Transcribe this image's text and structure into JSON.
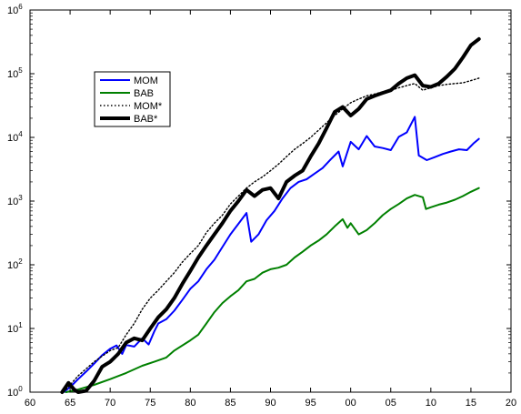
{
  "chart_data": {
    "type": "line",
    "title": "",
    "xlabel": "",
    "ylabel": "",
    "x_scale": "linear",
    "y_scale": "log",
    "xlim": [
      1960,
      2020
    ],
    "ylim": [
      1,
      1000000
    ],
    "x_ticks": [
      {
        "value": 1960,
        "label": "60"
      },
      {
        "value": 1965,
        "label": "65"
      },
      {
        "value": 1970,
        "label": "70"
      },
      {
        "value": 1975,
        "label": "75"
      },
      {
        "value": 1980,
        "label": "80"
      },
      {
        "value": 1985,
        "label": "85"
      },
      {
        "value": 1990,
        "label": "90"
      },
      {
        "value": 1995,
        "label": "95"
      },
      {
        "value": 2000,
        "label": "00"
      },
      {
        "value": 2005,
        "label": "05"
      },
      {
        "value": 2010,
        "label": "10"
      },
      {
        "value": 2015,
        "label": "15"
      },
      {
        "value": 2020,
        "label": "20"
      }
    ],
    "y_ticks": [
      {
        "value": 1,
        "base": "10",
        "exp": "0"
      },
      {
        "value": 10,
        "base": "10",
        "exp": "1"
      },
      {
        "value": 100,
        "base": "10",
        "exp": "2"
      },
      {
        "value": 1000,
        "base": "10",
        "exp": "3"
      },
      {
        "value": 10000,
        "base": "10",
        "exp": "4"
      },
      {
        "value": 100000,
        "base": "10",
        "exp": "5"
      },
      {
        "value": 1000000,
        "base": "10",
        "exp": "6"
      }
    ],
    "grid": false,
    "legend": {
      "position": "top-left"
    },
    "series": [
      {
        "name": "MOM",
        "color": "#0000ff",
        "style": "solid",
        "width": 2,
        "points": [
          [
            1964.2,
            1
          ],
          [
            1965,
            1.2
          ],
          [
            1966,
            1.6
          ],
          [
            1967,
            2.1
          ],
          [
            1968,
            2.8
          ],
          [
            1969,
            3.8
          ],
          [
            1970,
            4.8
          ],
          [
            1970.8,
            5.4
          ],
          [
            1971.5,
            4.0
          ],
          [
            1972,
            5.5
          ],
          [
            1973,
            5.2
          ],
          [
            1974,
            7
          ],
          [
            1974.8,
            5.6
          ],
          [
            1975.5,
            9
          ],
          [
            1976,
            12
          ],
          [
            1977,
            14
          ],
          [
            1978,
            19
          ],
          [
            1979,
            28
          ],
          [
            1980,
            42
          ],
          [
            1981,
            55
          ],
          [
            1982,
            85
          ],
          [
            1983,
            120
          ],
          [
            1984,
            190
          ],
          [
            1985,
            300
          ],
          [
            1986,
            440
          ],
          [
            1987,
            650
          ],
          [
            1987.6,
            230
          ],
          [
            1988.5,
            300
          ],
          [
            1989.5,
            500
          ],
          [
            1990.5,
            700
          ],
          [
            1991.5,
            1100
          ],
          [
            1992.5,
            1600
          ],
          [
            1993.5,
            2000
          ],
          [
            1994.5,
            2200
          ],
          [
            1995.5,
            2700
          ],
          [
            1996.5,
            3300
          ],
          [
            1997.5,
            4500
          ],
          [
            1998.5,
            6000
          ],
          [
            1999,
            3500
          ],
          [
            2000,
            8500
          ],
          [
            2001,
            6500
          ],
          [
            2002,
            10500
          ],
          [
            2003,
            7200
          ],
          [
            2004,
            6800
          ],
          [
            2005,
            6300
          ],
          [
            2006,
            10200
          ],
          [
            2007,
            12000
          ],
          [
            2008,
            21000
          ],
          [
            2008.5,
            5200
          ],
          [
            2009.5,
            4400
          ],
          [
            2010.5,
            4900
          ],
          [
            2011.5,
            5500
          ],
          [
            2012.5,
            6000
          ],
          [
            2013.5,
            6500
          ],
          [
            2014.5,
            6300
          ],
          [
            2015.3,
            8000
          ],
          [
            2016,
            9500
          ]
        ]
      },
      {
        "name": "BAB",
        "color": "#008000",
        "style": "solid",
        "width": 2,
        "points": [
          [
            1964.5,
            1
          ],
          [
            1966,
            1.1
          ],
          [
            1968,
            1.3
          ],
          [
            1970,
            1.6
          ],
          [
            1972,
            2.0
          ],
          [
            1974,
            2.6
          ],
          [
            1975.5,
            3.0
          ],
          [
            1977,
            3.5
          ],
          [
            1978,
            4.5
          ],
          [
            1980,
            6.5
          ],
          [
            1981,
            8
          ],
          [
            1982,
            12
          ],
          [
            1983,
            18
          ],
          [
            1984,
            25
          ],
          [
            1985,
            32
          ],
          [
            1986,
            40
          ],
          [
            1987,
            55
          ],
          [
            1988,
            60
          ],
          [
            1989,
            75
          ],
          [
            1990,
            85
          ],
          [
            1991,
            90
          ],
          [
            1992,
            100
          ],
          [
            1993,
            130
          ],
          [
            1994,
            160
          ],
          [
            1995,
            200
          ],
          [
            1996,
            240
          ],
          [
            1997,
            300
          ],
          [
            1998,
            400
          ],
          [
            1999,
            520
          ],
          [
            1999.6,
            380
          ],
          [
            2000,
            450
          ],
          [
            2001,
            300
          ],
          [
            2002,
            350
          ],
          [
            2003,
            450
          ],
          [
            2004,
            600
          ],
          [
            2005,
            750
          ],
          [
            2006,
            900
          ],
          [
            2007,
            1100
          ],
          [
            2008,
            1250
          ],
          [
            2009,
            1150
          ],
          [
            2009.4,
            750
          ],
          [
            2010,
            800
          ],
          [
            2011,
            880
          ],
          [
            2012,
            950
          ],
          [
            2013,
            1050
          ],
          [
            2014,
            1200
          ],
          [
            2015,
            1400
          ],
          [
            2016,
            1600
          ]
        ]
      },
      {
        "name": "MOM*",
        "color": "#000000",
        "style": "dotted",
        "width": 1.4,
        "points": [
          [
            1964.2,
            1
          ],
          [
            1966,
            1.8
          ],
          [
            1968,
            3
          ],
          [
            1970,
            4.5
          ],
          [
            1971,
            5
          ],
          [
            1972,
            8
          ],
          [
            1973,
            12
          ],
          [
            1974,
            20
          ],
          [
            1975,
            30
          ],
          [
            1976,
            40
          ],
          [
            1977,
            55
          ],
          [
            1978,
            75
          ],
          [
            1979,
            110
          ],
          [
            1980,
            150
          ],
          [
            1981,
            200
          ],
          [
            1982,
            320
          ],
          [
            1983,
            450
          ],
          [
            1984,
            600
          ],
          [
            1985,
            900
          ],
          [
            1986,
            1200
          ],
          [
            1987,
            1600
          ],
          [
            1988,
            2000
          ],
          [
            1989,
            2400
          ],
          [
            1990,
            3000
          ],
          [
            1991,
            3800
          ],
          [
            1992,
            5000
          ],
          [
            1993,
            6500
          ],
          [
            1994,
            8000
          ],
          [
            1995,
            10000
          ],
          [
            1996,
            13000
          ],
          [
            1997,
            17000
          ],
          [
            1998,
            22000
          ],
          [
            1999,
            28000
          ],
          [
            2000,
            35000
          ],
          [
            2001,
            40000
          ],
          [
            2002,
            45000
          ],
          [
            2003,
            48000
          ],
          [
            2004,
            52000
          ],
          [
            2005,
            55000
          ],
          [
            2006,
            60000
          ],
          [
            2007,
            65000
          ],
          [
            2008,
            70000
          ],
          [
            2009,
            55000
          ],
          [
            2010,
            60000
          ],
          [
            2011,
            65000
          ],
          [
            2012,
            68000
          ],
          [
            2013,
            70000
          ],
          [
            2014,
            72000
          ],
          [
            2015,
            78000
          ],
          [
            2016,
            85000
          ]
        ]
      },
      {
        "name": "BAB*",
        "color": "#000000",
        "style": "solid",
        "width": 4,
        "points": [
          [
            1964,
            1
          ],
          [
            1964.8,
            1.4
          ],
          [
            1965.5,
            1.1
          ],
          [
            1966,
            1.0
          ],
          [
            1967,
            1.05
          ],
          [
            1968,
            1.5
          ],
          [
            1969,
            2.5
          ],
          [
            1970,
            3
          ],
          [
            1971,
            4
          ],
          [
            1972,
            6
          ],
          [
            1973,
            7
          ],
          [
            1974,
            6.5
          ],
          [
            1975,
            10
          ],
          [
            1976,
            15
          ],
          [
            1977,
            20
          ],
          [
            1978,
            30
          ],
          [
            1979,
            50
          ],
          [
            1980,
            80
          ],
          [
            1981,
            130
          ],
          [
            1982,
            200
          ],
          [
            1983,
            300
          ],
          [
            1984,
            450
          ],
          [
            1985,
            700
          ],
          [
            1986,
            1000
          ],
          [
            1987,
            1500
          ],
          [
            1988,
            1200
          ],
          [
            1989,
            1500
          ],
          [
            1990,
            1600
          ],
          [
            1991,
            1100
          ],
          [
            1992,
            2000
          ],
          [
            1993,
            2500
          ],
          [
            1994,
            3000
          ],
          [
            1995,
            5000
          ],
          [
            1996,
            8000
          ],
          [
            1997,
            14000
          ],
          [
            1998,
            25000
          ],
          [
            1999,
            30000
          ],
          [
            2000,
            22000
          ],
          [
            2001,
            28000
          ],
          [
            2002,
            40000
          ],
          [
            2003,
            45000
          ],
          [
            2004,
            50000
          ],
          [
            2005,
            55000
          ],
          [
            2006,
            70000
          ],
          [
            2007,
            85000
          ],
          [
            2008,
            95000
          ],
          [
            2009,
            65000
          ],
          [
            2010,
            62000
          ],
          [
            2011,
            70000
          ],
          [
            2012,
            90000
          ],
          [
            2013,
            120000
          ],
          [
            2014,
            180000
          ],
          [
            2015,
            280000
          ],
          [
            2016,
            350000
          ]
        ]
      }
    ]
  }
}
